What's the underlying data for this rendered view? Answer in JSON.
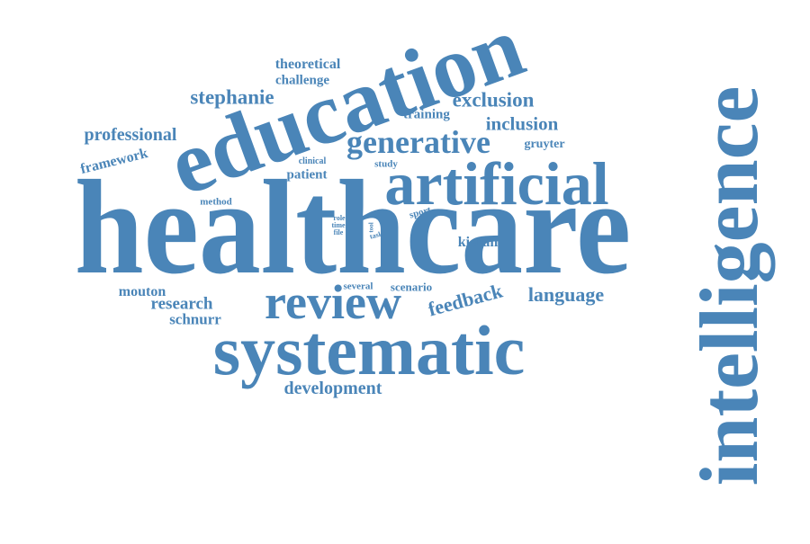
{
  "colors": {
    "word": "#4a85b8",
    "background": "#ffffff"
  },
  "words": {
    "healthcare": "healthcare",
    "intelligence": "intelligence",
    "education": "education",
    "systematic": "systematic",
    "artificial": "artificial",
    "review": "review",
    "generative": "generative",
    "feedback": "feedback",
    "language": "language",
    "exclusion": "exclusion",
    "inclusion": "inclusion",
    "stephanie": "stephanie",
    "professional": "professional",
    "development": "development",
    "research": "research",
    "schnurr": "schnurr",
    "mouton": "mouton",
    "kieran": "kieran",
    "framework": "framework",
    "theoretical": "theoretical",
    "challenge": "challenge",
    "training": "training",
    "gruyter": "gruyter",
    "patient": "patient",
    "study": "study",
    "clinical": "clinical",
    "method": "method",
    "several": "several",
    "scenario": "scenario",
    "sport": "sport",
    "role": "role",
    "time": "time",
    "file": "file",
    "task": "task",
    "tool": "tool"
  }
}
